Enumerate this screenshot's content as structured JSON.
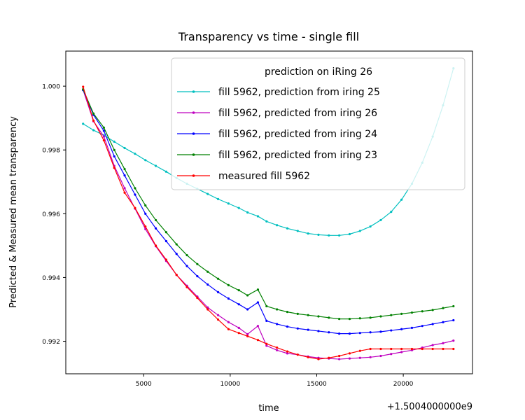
{
  "chart_data": {
    "type": "line",
    "title": "Transparency vs time - single fill",
    "xlabel": "time",
    "ylabel": "Predicted & Measured mean transparency",
    "x_offset_label": "+1.5004000000e9",
    "xlim": [
      500,
      24000
    ],
    "ylim": [
      0.99098,
      1.0011
    ],
    "x_ticks": [
      5000,
      10000,
      15000,
      20000
    ],
    "x_tick_labels": [
      "5000",
      "10000",
      "15000",
      "20000"
    ],
    "y_ticks": [
      0.992,
      0.994,
      0.996,
      0.998,
      1.0
    ],
    "y_tick_labels": [
      "0.992",
      "0.994",
      "0.996",
      "0.998",
      "1.000"
    ],
    "grid": false,
    "legend": {
      "title": "prediction on iRing 26",
      "placement": "top-right"
    },
    "x": [
      1500,
      2100,
      2700,
      3300,
      3900,
      4500,
      5100,
      5700,
      6300,
      6900,
      7500,
      8100,
      8700,
      9300,
      9900,
      10500,
      11000,
      11600,
      12100,
      12700,
      13300,
      13900,
      14500,
      15100,
      15700,
      16300,
      16900,
      17500,
      18100,
      18700,
      19300,
      19900,
      20500,
      21100,
      21700,
      22300,
      22900
    ],
    "series": [
      {
        "name": "fill 5962, prediction from iring 25",
        "color": "#00bfbf",
        "values": [
          0.99882,
          0.99862,
          0.99846,
          0.99826,
          0.99806,
          0.99788,
          0.99768,
          0.9975,
          0.99732,
          0.99712,
          0.99694,
          0.99678,
          0.99662,
          0.99646,
          0.99632,
          0.99618,
          0.99604,
          0.99592,
          0.99576,
          0.99564,
          0.99554,
          0.99546,
          0.99538,
          0.99534,
          0.99532,
          0.99532,
          0.99536,
          0.99546,
          0.9956,
          0.9958,
          0.99606,
          0.99644,
          0.99694,
          0.9976,
          0.99842,
          0.9994,
          1.00056
        ]
      },
      {
        "name": "fill 5962, predicted from iring 26",
        "color": "#bf00bf",
        "values": [
          0.99988,
          0.9989,
          0.99842,
          0.9975,
          0.9968,
          0.99616,
          0.99552,
          0.99498,
          0.99452,
          0.99408,
          0.99374,
          0.9934,
          0.99306,
          0.99282,
          0.9926,
          0.99242,
          0.99222,
          0.99248,
          0.99186,
          0.99172,
          0.99162,
          0.99158,
          0.99152,
          0.99148,
          0.99146,
          0.99144,
          0.99146,
          0.99148,
          0.9915,
          0.99154,
          0.9916,
          0.99166,
          0.99172,
          0.9918,
          0.99188,
          0.99194,
          0.99202
        ]
      },
      {
        "name": "fill 5962, predicted from iring 24",
        "color": "#0000ff",
        "values": [
          0.99988,
          0.9991,
          0.9986,
          0.9978,
          0.9972,
          0.9966,
          0.996,
          0.99554,
          0.99514,
          0.99474,
          0.99436,
          0.99404,
          0.99378,
          0.99354,
          0.99334,
          0.99316,
          0.993,
          0.99322,
          0.99264,
          0.99254,
          0.99246,
          0.9924,
          0.99236,
          0.99232,
          0.99228,
          0.99224,
          0.99224,
          0.99226,
          0.99228,
          0.9923,
          0.99234,
          0.99238,
          0.99242,
          0.99248,
          0.99254,
          0.9926,
          0.99266
        ]
      },
      {
        "name": "fill 5962, predicted from iring 23",
        "color": "#008000",
        "values": [
          0.9999,
          0.99914,
          0.9987,
          0.998,
          0.9974,
          0.9968,
          0.99626,
          0.9958,
          0.99542,
          0.99504,
          0.9947,
          0.99442,
          0.99418,
          0.99396,
          0.99376,
          0.9936,
          0.99344,
          0.99362,
          0.9931,
          0.993,
          0.99292,
          0.99286,
          0.99282,
          0.99278,
          0.99274,
          0.9927,
          0.9927,
          0.99272,
          0.99274,
          0.99278,
          0.99282,
          0.99286,
          0.9929,
          0.99294,
          0.99298,
          0.99304,
          0.9931
        ]
      },
      {
        "name": "measured fill 5962",
        "color": "#ff0000",
        "values": [
          0.99998,
          0.99892,
          0.9983,
          0.99744,
          0.99666,
          0.99618,
          0.9956,
          0.995,
          0.99456,
          0.99408,
          0.9937,
          0.99336,
          0.993,
          0.99268,
          0.99238,
          0.99226,
          0.99216,
          0.99204,
          0.99192,
          0.9918,
          0.99168,
          0.99158,
          0.9915,
          0.99144,
          0.99148,
          0.99154,
          0.99162,
          0.9917,
          0.99176,
          0.99176,
          0.99176,
          0.99176,
          0.99176,
          0.99176,
          0.99176,
          0.99176,
          0.99176
        ]
      }
    ]
  }
}
